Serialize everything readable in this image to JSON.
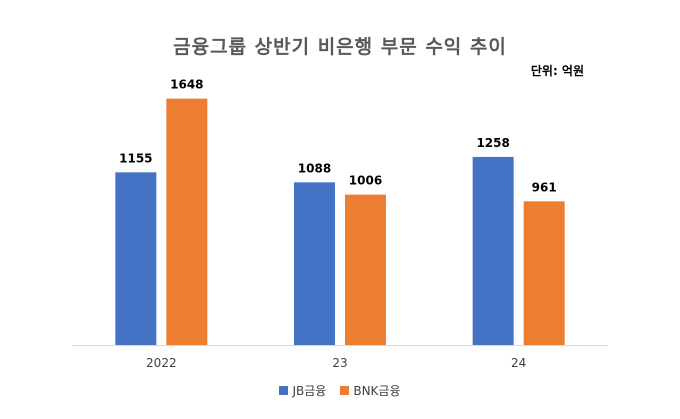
{
  "chart_data": {
    "type": "bar",
    "title": "금융그룹 상반기 비은행 부문 수익 추이",
    "unit_label": "단위: 억원",
    "categories": [
      "2022",
      "23",
      "24"
    ],
    "series": [
      {
        "name": "JB금융",
        "color": "#4472C4",
        "values": [
          1155,
          1088,
          1258
        ]
      },
      {
        "name": "BNK금융",
        "color": "#ED7D31",
        "values": [
          1648,
          1006,
          961
        ]
      }
    ],
    "ylim": [
      0,
      1900
    ],
    "grid": false,
    "legend_position": "bottom",
    "data_labels": true
  }
}
